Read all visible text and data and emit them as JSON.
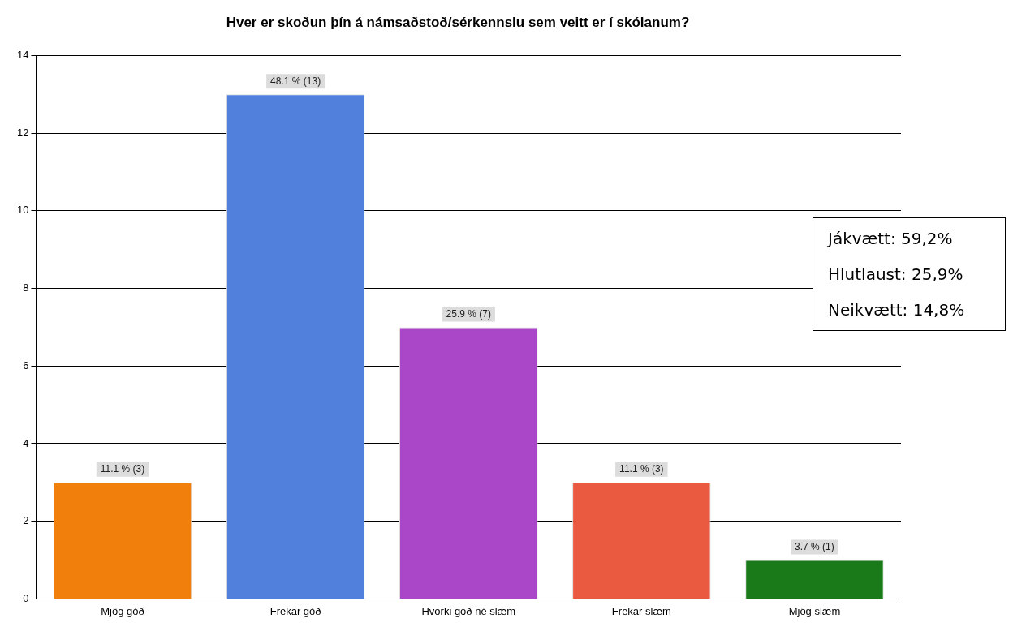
{
  "chart_data": {
    "type": "bar",
    "title": "Hver er skoðun þín á námsaðstoð/sérkennslu sem veitt er í skólanum?",
    "categories": [
      "Mjög góð",
      "Frekar góð",
      "Hvorki góð né slæm",
      "Frekar slæm",
      "Mjög slæm"
    ],
    "values": [
      3,
      13,
      7,
      3,
      1
    ],
    "colors": [
      "#f07f0c",
      "#5080dc",
      "#aa46c8",
      "#ea5a40",
      "#1a7a1a"
    ],
    "value_labels": [
      "11.1 % (3)",
      "48.1 % (13)",
      "25.9 % (7)",
      "11.1 % (3)",
      "3.7 % (1)"
    ],
    "ylim": [
      0,
      14
    ],
    "yticks": [
      0,
      2,
      4,
      6,
      8,
      10,
      12,
      14
    ],
    "grid": "y",
    "legend": false,
    "annotations": [
      "Jákvætt: 59,2%\n\nHlutlaust: 25,9%\n\nNeikvætt: 14,8%"
    ]
  }
}
